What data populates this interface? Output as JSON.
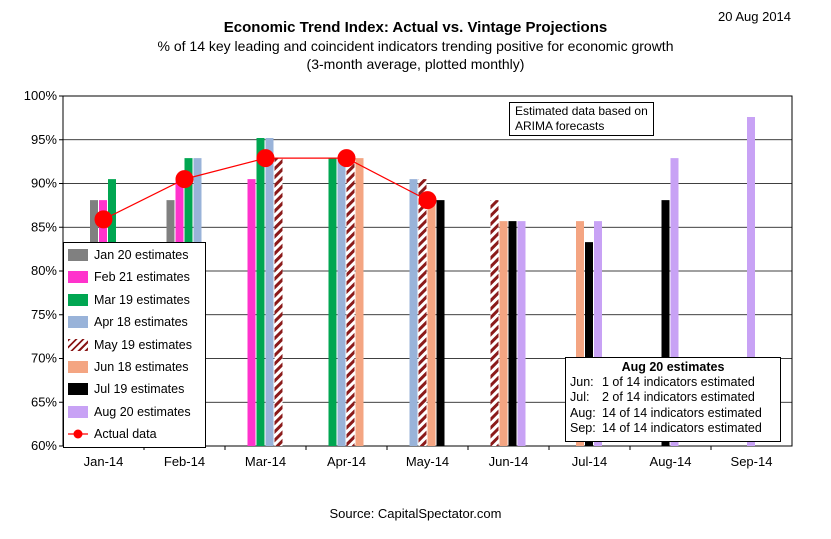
{
  "date_stamp": "20 Aug 2014",
  "source": "Source: CapitalSpectator.com",
  "note": {
    "line1": "Estimated data based on",
    "line2": "ARIMA forecasts"
  },
  "estimates_box": {
    "title": "Aug 20 estimates",
    "rows": [
      {
        "month": "Jun:",
        "text": "1 of 14 indicators estimated"
      },
      {
        "month": "Jul:",
        "text": "2 of 14 indicators estimated"
      },
      {
        "month": "Aug:",
        "text": "14 of 14 indicators estimated"
      },
      {
        "month": "Sep:",
        "text": "14 of 14 indicators estimated"
      }
    ]
  },
  "colors": {
    "Jan 20 estimates": "#808080",
    "Feb 21 estimates": "#ff33cc",
    "Mar 19 estimates": "#00a651",
    "Apr 18 estimates": "#99b3d9",
    "May 19 estimates": "#8b1a1a",
    "Jun 18 estimates": "#f4a582",
    "Jul 19 estimates": "#000000",
    "Aug 20 estimates": "#c8a2f5",
    "Actual data": "#ff0000"
  },
  "chart_data": {
    "type": "bar",
    "title": "Economic Trend Index: Actual vs. Vintage Projections",
    "subtitle": "% of 14 key leading and coincident indicators trending positive for economic growth",
    "subtitle2": "(3-month average, plotted monthly)",
    "categories": [
      "Jan-14",
      "Feb-14",
      "Mar-14",
      "Apr-14",
      "May-14",
      "Jun-14",
      "Jul-14",
      "Aug-14",
      "Sep-14"
    ],
    "ylim": [
      60,
      100
    ],
    "yticks": [
      "60%",
      "65%",
      "70%",
      "75%",
      "80%",
      "85%",
      "90%",
      "95%",
      "100%"
    ],
    "series": [
      {
        "name": "Jan 20 estimates",
        "style": "solid",
        "values": [
          88.1,
          88.1,
          null,
          null,
          null,
          null,
          null,
          null,
          null
        ]
      },
      {
        "name": "Feb 21 estimates",
        "style": "solid",
        "values": [
          88.1,
          90.5,
          90.5,
          null,
          null,
          null,
          null,
          null,
          null
        ]
      },
      {
        "name": "Mar 19 estimates",
        "style": "solid",
        "values": [
          90.5,
          92.9,
          95.2,
          92.9,
          null,
          null,
          null,
          null,
          null
        ]
      },
      {
        "name": "Apr 18 estimates",
        "style": "solid",
        "values": [
          null,
          92.9,
          95.2,
          92.9,
          90.5,
          null,
          null,
          null,
          null
        ]
      },
      {
        "name": "May 19 estimates",
        "style": "hatched",
        "values": [
          null,
          null,
          92.9,
          92.9,
          90.5,
          88.1,
          null,
          null,
          null
        ]
      },
      {
        "name": "Jun 18 estimates",
        "style": "solid",
        "values": [
          null,
          null,
          null,
          92.9,
          88.1,
          85.7,
          85.7,
          null,
          null
        ]
      },
      {
        "name": "Jul 19 estimates",
        "style": "solid",
        "values": [
          null,
          null,
          null,
          null,
          88.1,
          85.7,
          83.3,
          88.1,
          null
        ]
      },
      {
        "name": "Aug 20 estimates",
        "style": "solid",
        "values": [
          null,
          null,
          null,
          null,
          null,
          85.7,
          85.7,
          92.9,
          97.6
        ]
      }
    ],
    "actual": {
      "name": "Actual data",
      "values": [
        85.9,
        90.5,
        92.9,
        92.9,
        88.1,
        null,
        null,
        null,
        null
      ]
    },
    "grid": "horizontal",
    "legend_position": "left"
  }
}
